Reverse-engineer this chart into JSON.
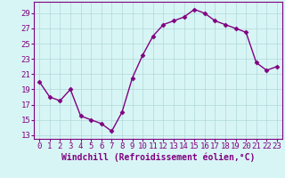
{
  "x": [
    0,
    1,
    2,
    3,
    4,
    5,
    6,
    7,
    8,
    9,
    10,
    11,
    12,
    13,
    14,
    15,
    16,
    17,
    18,
    19,
    20,
    21,
    22,
    23
  ],
  "y": [
    20,
    18,
    17.5,
    19,
    15.5,
    15,
    14.5,
    13.5,
    16,
    20.5,
    23.5,
    26,
    27.5,
    28,
    28.5,
    29.5,
    29,
    28,
    27.5,
    27,
    26.5,
    22.5,
    21.5,
    22
  ],
  "line_color": "#800080",
  "marker": "D",
  "marker_size": 2.5,
  "line_width": 1,
  "background_color": "#d8f5f5",
  "grid_color": "#b0d8d8",
  "xlabel": "Windchill (Refroidissement éolien,°C)",
  "xlabel_fontsize": 7,
  "ylabel_ticks": [
    13,
    15,
    17,
    19,
    21,
    23,
    25,
    27,
    29
  ],
  "xlim": [
    -0.5,
    23.5
  ],
  "ylim": [
    12.5,
    30.5
  ],
  "tick_fontsize": 6.5
}
